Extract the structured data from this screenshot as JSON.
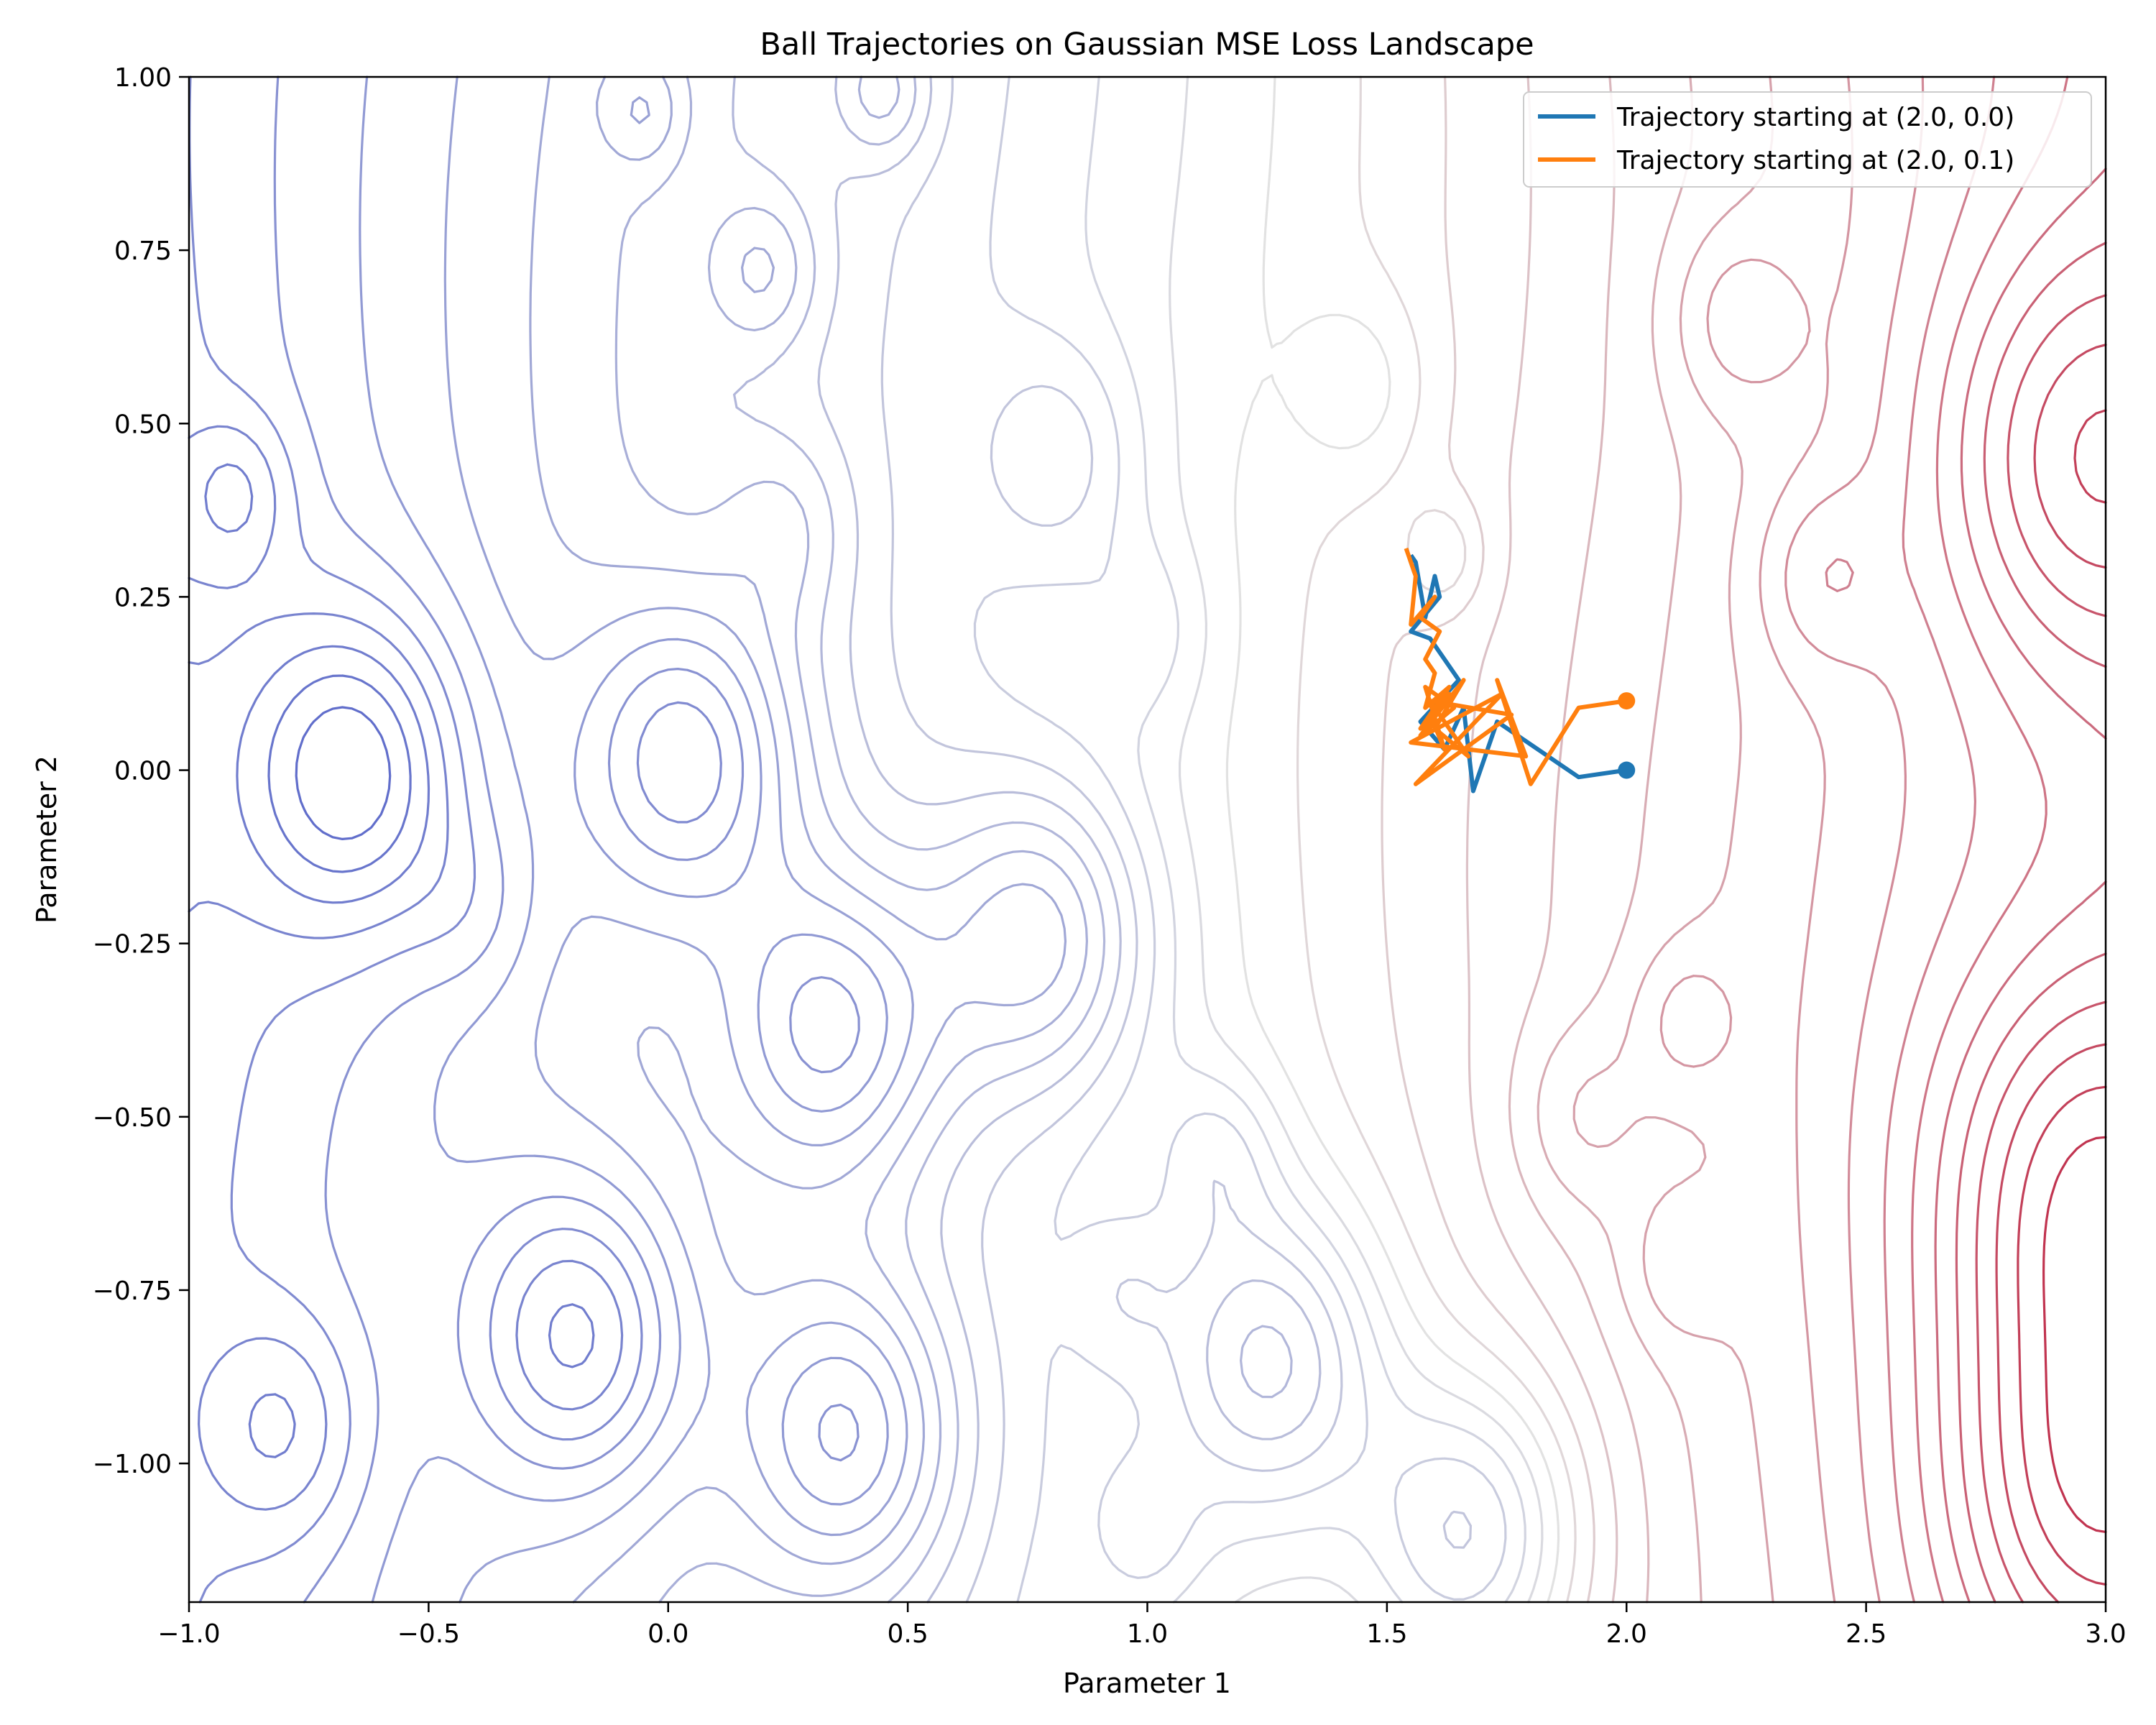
{
  "chart_data": {
    "type": "contour",
    "title": "Ball Trajectories on Gaussian MSE Loss Landscape",
    "xlabel": "Parameter 1",
    "ylabel": "Parameter 2",
    "xlim": [
      -1.0,
      3.0
    ],
    "ylim": [
      -1.2,
      1.0
    ],
    "xticks": [
      -1.0,
      -0.5,
      0.0,
      0.5,
      1.0,
      1.5,
      2.0,
      2.5,
      3.0
    ],
    "xtick_labels": [
      "−1.0",
      "−0.5",
      "0.0",
      "0.5",
      "1.0",
      "1.5",
      "2.0",
      "2.5",
      "3.0"
    ],
    "yticks": [
      -1.0,
      -0.75,
      -0.5,
      -0.25,
      0.0,
      0.25,
      0.5,
      0.75,
      1.0
    ],
    "ytick_labels": [
      "−1.00",
      "−0.75",
      "−0.50",
      "−0.25",
      "0.00",
      "0.25",
      "0.50",
      "0.75",
      "1.00"
    ],
    "grid": false,
    "colormap": "coolwarm",
    "legend_position": "top-right",
    "contour_minima": [
      {
        "x": 0.05,
        "y": 0.02
      },
      {
        "x": -0.65,
        "y": 0.0
      },
      {
        "x": 0.35,
        "y": -0.37
      },
      {
        "x": 0.78,
        "y": -0.24
      },
      {
        "x": -0.18,
        "y": -0.82
      },
      {
        "x": 0.38,
        "y": -0.96
      },
      {
        "x": 1.27,
        "y": -0.85
      },
      {
        "x": 1.68,
        "y": -1.1
      }
    ],
    "contour_maxima": [
      {
        "x": 2.95,
        "y": 0.45
      },
      {
        "x": 2.95,
        "y": -0.6
      },
      {
        "x": 2.95,
        "y": -1.05
      }
    ],
    "series": [
      {
        "name": "Trajectory starting at (2.0, 0.0)",
        "color": "#1f77b4",
        "x": [
          2.0,
          1.9,
          1.73,
          1.68,
          1.66,
          1.62,
          1.57,
          1.65,
          1.59,
          1.55,
          1.61,
          1.6,
          1.58,
          1.56,
          1.55
        ],
        "y": [
          0.0,
          -0.01,
          0.07,
          -0.03,
          0.09,
          0.03,
          0.07,
          0.13,
          0.19,
          0.2,
          0.25,
          0.28,
          0.22,
          0.3,
          0.31
        ]
      },
      {
        "name": "Trajectory starting at (2.0, 0.1)",
        "color": "#ff7f0e",
        "x": [
          2.0,
          1.9,
          1.8,
          1.73,
          1.79,
          1.55,
          1.74,
          1.56,
          1.76,
          1.59,
          1.67,
          1.6,
          1.66,
          1.57,
          1.64,
          1.58,
          1.62,
          1.59,
          1.63,
          1.57,
          1.63,
          1.58,
          1.6,
          1.58,
          1.61,
          1.57,
          1.6,
          1.55,
          1.56,
          1.54
        ],
        "y": [
          0.1,
          0.09,
          -0.02,
          0.13,
          0.02,
          0.04,
          0.11,
          -0.02,
          0.08,
          0.1,
          0.02,
          0.06,
          0.13,
          0.05,
          0.09,
          0.12,
          0.03,
          0.08,
          0.11,
          0.06,
          0.12,
          0.09,
          0.14,
          0.16,
          0.2,
          0.22,
          0.25,
          0.21,
          0.28,
          0.32
        ]
      }
    ]
  }
}
